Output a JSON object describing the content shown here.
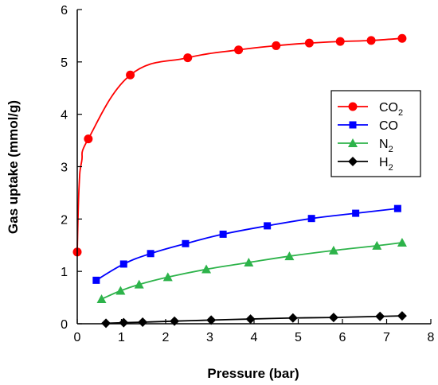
{
  "chart_data": {
    "type": "scatter",
    "xlabel": "Pressure (bar)",
    "ylabel": "Gas uptake (mmol/g)",
    "xlim": [
      0,
      8
    ],
    "ylim": [
      0,
      6
    ],
    "xticks": [
      "0",
      "1",
      "2",
      "3",
      "4",
      "5",
      "6",
      "7",
      "8"
    ],
    "yticks": [
      "0",
      "1",
      "2",
      "3",
      "4",
      "5",
      "6"
    ],
    "grid": false,
    "legend_position": "right",
    "series": [
      {
        "name": "CO₂",
        "name_main": "CO",
        "name_sub": "2",
        "color": "#ff0000",
        "marker": "circle",
        "x": [
          0.0,
          0.25,
          1.2,
          2.5,
          3.65,
          4.5,
          5.25,
          5.95,
          6.65,
          7.35
        ],
        "y": [
          1.37,
          3.53,
          4.75,
          5.08,
          5.23,
          5.31,
          5.36,
          5.39,
          5.41,
          5.45
        ]
      },
      {
        "name": "CO",
        "name_main": "CO",
        "name_sub": "",
        "color": "#0000ff",
        "marker": "square",
        "x": [
          0.43,
          1.05,
          1.66,
          2.45,
          3.3,
          4.3,
          5.3,
          6.3,
          7.25
        ],
        "y": [
          0.83,
          1.14,
          1.34,
          1.53,
          1.71,
          1.87,
          2.01,
          2.11,
          2.2
        ]
      },
      {
        "name": "N₂",
        "name_main": "N",
        "name_sub": "2",
        "color": "#2db34a",
        "marker": "triangle",
        "x": [
          0.55,
          0.98,
          1.4,
          2.05,
          2.92,
          3.88,
          4.8,
          5.8,
          6.78,
          7.35
        ],
        "y": [
          0.47,
          0.63,
          0.75,
          0.89,
          1.04,
          1.17,
          1.29,
          1.4,
          1.49,
          1.55
        ]
      },
      {
        "name": "H₂",
        "name_main": "H",
        "name_sub": "2",
        "color": "#000000",
        "marker": "diamond",
        "x": [
          0.65,
          1.05,
          1.48,
          2.2,
          3.03,
          3.92,
          4.88,
          5.8,
          6.85,
          7.35
        ],
        "y": [
          0.01,
          0.02,
          0.03,
          0.05,
          0.07,
          0.09,
          0.11,
          0.12,
          0.14,
          0.15
        ]
      }
    ]
  }
}
